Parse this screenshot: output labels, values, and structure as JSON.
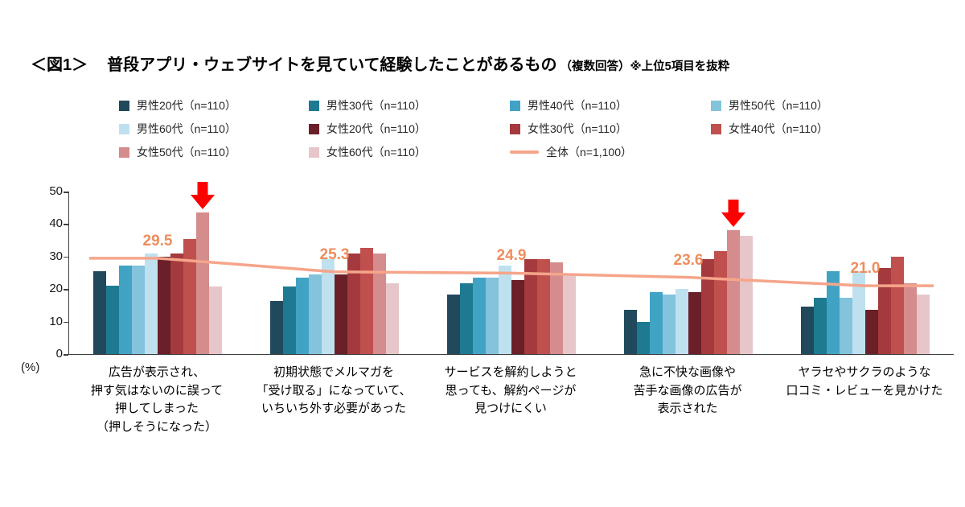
{
  "title": {
    "prefix": "＜図1＞",
    "main": "普段アプリ・ウェブサイトを見ていて経験したことがあるもの",
    "suffix": "（複数回答）※上位5項目を抜粋"
  },
  "chart_data": {
    "type": "bar",
    "ylabel": "(%)",
    "ylim": [
      0,
      50
    ],
    "y_ticks": [
      0,
      10,
      20,
      30,
      40,
      50
    ],
    "grid": false,
    "legend_position": "top",
    "value_label_color": "#EF8D5D",
    "arrow_color": "#FF0000",
    "categories": [
      [
        "広告が表示され、",
        "押す気はないのに誤って",
        "押してしまった",
        "（押しそうになった）"
      ],
      [
        "初期状態でメルマガを",
        "「受け取る」になっていて、",
        "いちいち外す必要があった"
      ],
      [
        "サービスを解約しようと",
        "思っても、解約ページが",
        "見つけにくい"
      ],
      [
        "急に不快な画像や",
        "苦手な画像の広告が",
        "表示された"
      ],
      [
        "ヤラセやサクラのような",
        "口コミ・レビューを見かけた"
      ]
    ],
    "series": [
      {
        "name": "男性20代（n=110）",
        "color": "#21495C",
        "values": [
          25.5,
          16.4,
          18.2,
          13.6,
          14.5
        ]
      },
      {
        "name": "男性30代（n=110）",
        "color": "#1E7A90",
        "values": [
          21.0,
          20.9,
          21.8,
          10.0,
          17.3
        ]
      },
      {
        "name": "男性40代（n=110）",
        "color": "#41A3C4",
        "values": [
          27.3,
          23.6,
          23.6,
          19.1,
          25.5
        ]
      },
      {
        "name": "男性50代（n=110）",
        "color": "#83C3DC",
        "values": [
          27.3,
          24.5,
          23.6,
          18.2,
          17.3
        ]
      },
      {
        "name": "男性60代（n=110）",
        "color": "#BFE1EF",
        "values": [
          30.9,
          29.1,
          27.3,
          20.0,
          25.5
        ]
      },
      {
        "name": "女性20代（n=110）",
        "color": "#6B1F29",
        "values": [
          30.0,
          24.5,
          22.7,
          19.1,
          13.6
        ]
      },
      {
        "name": "女性30代（n=110）",
        "color": "#A53A3E",
        "values": [
          30.9,
          30.9,
          29.1,
          29.1,
          26.4
        ]
      },
      {
        "name": "女性40代（n=110）",
        "color": "#C0504D",
        "values": [
          35.5,
          32.7,
          29.1,
          31.8,
          30.0
        ]
      },
      {
        "name": "女性50代（n=110）",
        "color": "#D48C8C",
        "values": [
          43.6,
          30.9,
          28.2,
          38.2,
          21.8
        ]
      },
      {
        "name": "女性60代（n=110）",
        "color": "#E7C6C9",
        "values": [
          20.9,
          21.8,
          24.5,
          36.4,
          18.2
        ]
      }
    ],
    "line_series": {
      "name": "全体（n=1,100）",
      "color": "#F5A58A",
      "values": [
        29.5,
        25.3,
        24.9,
        23.6,
        21.0
      ]
    },
    "value_labels": [
      "29.5",
      "25.3",
      "24.9",
      "23.6",
      "21.0"
    ],
    "arrows": [
      {
        "group": 0,
        "bar": 8
      },
      {
        "group": 3,
        "bar": 8
      }
    ]
  }
}
